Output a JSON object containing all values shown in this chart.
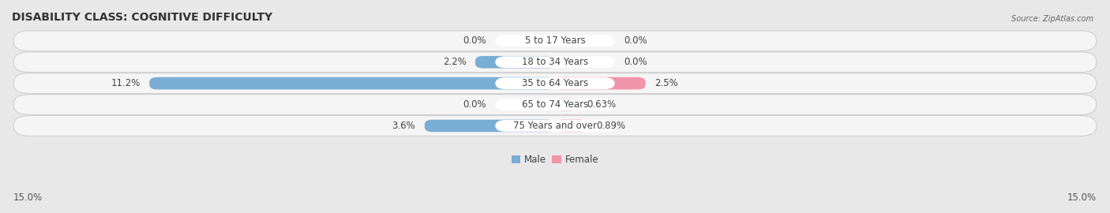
{
  "title": "DISABILITY CLASS: COGNITIVE DIFFICULTY",
  "source_text": "Source: ZipAtlas.com",
  "categories": [
    "5 to 17 Years",
    "18 to 34 Years",
    "35 to 64 Years",
    "65 to 74 Years",
    "75 Years and over"
  ],
  "male_values": [
    0.0,
    2.2,
    11.2,
    0.0,
    3.6
  ],
  "female_values": [
    0.0,
    0.0,
    2.5,
    0.63,
    0.89
  ],
  "male_color": "#7aadd4",
  "female_color": "#f195ab",
  "male_label": "Male",
  "female_label": "Female",
  "axis_limit": 15.0,
  "axis_label_left": "15.0%",
  "axis_label_right": "15.0%",
  "bar_height": 0.58,
  "bg_color": "#e8e8e8",
  "row_bg_color": "#f5f5f5",
  "row_edge_color": "#d0d0d0",
  "title_fontsize": 10,
  "label_fontsize": 8.5,
  "cat_fontsize": 8.5,
  "tick_fontsize": 8.5,
  "center_label_color": "#444444",
  "value_label_color": "#444444",
  "label_pill_color": "#ffffff",
  "min_bar_display": 0.3
}
